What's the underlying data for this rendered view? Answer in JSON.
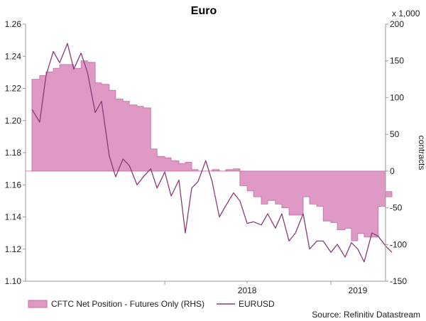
{
  "chart_data": {
    "type": "area+line",
    "title": "Euro",
    "left_axis": {
      "range": [
        1.1,
        1.26
      ],
      "ticks": [
        "1.10",
        "1.12",
        "1.14",
        "1.16",
        "1.18",
        "1.20",
        "1.22",
        "1.24",
        "1.26"
      ]
    },
    "right_axis": {
      "unit": "x 1,000",
      "label": "contracts",
      "range": [
        -150,
        200
      ],
      "ticks": [
        "-150",
        "-100",
        "-50",
        "0",
        "50",
        "100",
        "150",
        "200"
      ]
    },
    "x_axis": {
      "range": [
        "2017-03",
        "2019-05"
      ],
      "tick_labels": [
        "2018",
        "2019"
      ]
    },
    "legend": [
      {
        "key": "area",
        "label": "CFTC Net Position - Futures Only (RHS)"
      },
      {
        "key": "line",
        "label": "EURUSD"
      }
    ],
    "source": "Source: Refinitiv Datastream",
    "colors": {
      "area_fill": "#de9ac4",
      "area_edge": "#c26aa2",
      "line": "#8a3a78",
      "axis": "#9a9a9a"
    },
    "series": [
      {
        "key": "area",
        "name": "CFTC Net Position - Futures Only (RHS)",
        "x": [
          "2017-03-15",
          "2017-04-01",
          "2017-04-15",
          "2017-05-01",
          "2017-05-15",
          "2017-06-01",
          "2017-06-15",
          "2017-07-01",
          "2017-07-15",
          "2017-08-01",
          "2017-08-15",
          "2017-09-01",
          "2017-09-15",
          "2017-10-01",
          "2017-10-15",
          "2017-11-01",
          "2017-11-15",
          "2017-12-01",
          "2017-12-15",
          "2018-01-01",
          "2018-01-15",
          "2018-02-01",
          "2018-02-15",
          "2018-03-01",
          "2018-03-15",
          "2018-04-01",
          "2018-04-15",
          "2018-05-01",
          "2018-05-15",
          "2018-06-01",
          "2018-06-15",
          "2018-07-01",
          "2018-07-15",
          "2018-08-01",
          "2018-08-15",
          "2018-09-01",
          "2018-09-15",
          "2018-10-01",
          "2018-10-15",
          "2018-11-01",
          "2018-11-15",
          "2018-12-01",
          "2018-12-15",
          "2019-01-01",
          "2019-01-15",
          "2019-02-01",
          "2019-02-15",
          "2019-03-01",
          "2019-03-15",
          "2019-04-01",
          "2019-04-15",
          "2019-05-01",
          "2019-05-15"
        ],
        "values": [
          125,
          130,
          135,
          140,
          145,
          145,
          140,
          150,
          148,
          120,
          118,
          110,
          98,
          95,
          90,
          88,
          86,
          30,
          20,
          18,
          14,
          10,
          12,
          2,
          0,
          0,
          2,
          0,
          2,
          3,
          -20,
          -27,
          -35,
          -45,
          -40,
          -45,
          -50,
          -60,
          -60,
          -35,
          -45,
          -48,
          -68,
          -70,
          -80,
          -78,
          -95,
          -85,
          -90,
          -90,
          -48,
          -28,
          -35
        ]
      },
      {
        "key": "line",
        "name": "EURUSD",
        "x": [
          "2017-03-15",
          "2017-04-01",
          "2017-04-15",
          "2017-05-01",
          "2017-05-15",
          "2017-06-01",
          "2017-06-15",
          "2017-07-01",
          "2017-07-15",
          "2017-08-01",
          "2017-08-15",
          "2017-09-01",
          "2017-09-15",
          "2017-10-01",
          "2017-10-15",
          "2017-11-01",
          "2017-11-15",
          "2017-12-01",
          "2017-12-15",
          "2018-01-01",
          "2018-01-15",
          "2018-02-01",
          "2018-02-15",
          "2018-03-01",
          "2018-03-15",
          "2018-04-01",
          "2018-04-15",
          "2018-05-01",
          "2018-05-15",
          "2018-06-01",
          "2018-06-15",
          "2018-07-01",
          "2018-07-15",
          "2018-08-01",
          "2018-08-15",
          "2018-09-01",
          "2018-09-15",
          "2018-10-01",
          "2018-10-15",
          "2018-11-01",
          "2018-11-15",
          "2018-12-01",
          "2018-12-15",
          "2019-01-01",
          "2019-01-15",
          "2019-02-01",
          "2019-02-15",
          "2019-03-01",
          "2019-03-15",
          "2019-04-01",
          "2019-04-15",
          "2019-05-01",
          "2019-05-15"
        ],
        "values": [
          1.207,
          1.199,
          1.228,
          1.243,
          1.236,
          1.248,
          1.232,
          1.242,
          1.23,
          1.205,
          1.212,
          1.178,
          1.165,
          1.176,
          1.172,
          1.16,
          1.165,
          1.17,
          1.158,
          1.168,
          1.153,
          1.163,
          1.13,
          1.158,
          1.162,
          1.175,
          1.162,
          1.14,
          1.147,
          1.155,
          1.15,
          1.136,
          1.137,
          1.135,
          1.142,
          1.133,
          1.142,
          1.125,
          1.13,
          1.142,
          1.12,
          1.125,
          1.125,
          1.118,
          1.123,
          1.115,
          1.124,
          1.12,
          1.112,
          1.13,
          1.128,
          1.122,
          1.118
        ]
      }
    ]
  }
}
